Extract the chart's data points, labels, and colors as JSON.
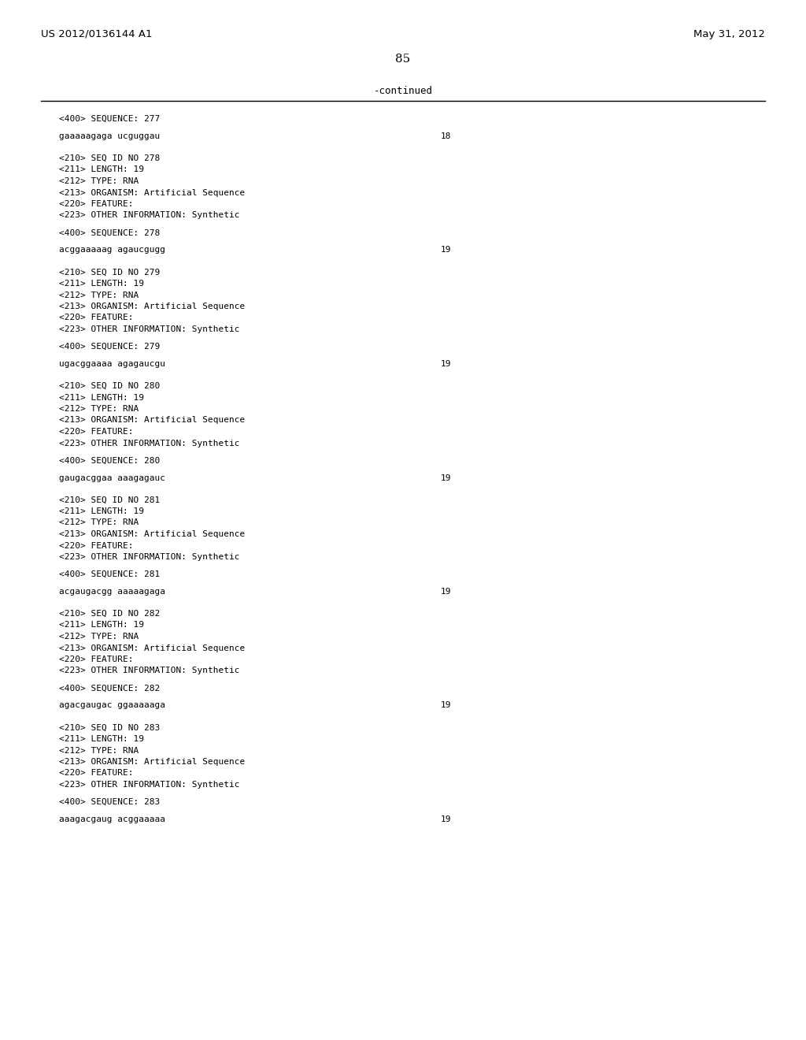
{
  "header_left": "US 2012/0136144 A1",
  "header_right": "May 31, 2012",
  "page_number": "85",
  "continued_label": "-continued",
  "background_color": "#ffffff",
  "text_color": "#000000",
  "sections": [
    {
      "seq400": "<400> SEQUENCE: 277",
      "sequence": "gaaaaagaga ucguggau",
      "seq_number": "18"
    },
    {
      "seq210": "<210> SEQ ID NO 278",
      "seq211": "<211> LENGTH: 19",
      "seq212": "<212> TYPE: RNA",
      "seq213": "<213> ORGANISM: Artificial Sequence",
      "seq220": "<220> FEATURE:",
      "seq223": "<223> OTHER INFORMATION: Synthetic",
      "seq400": "<400> SEQUENCE: 278",
      "sequence": "acggaaaaag agaucgugg",
      "seq_number": "19"
    },
    {
      "seq210": "<210> SEQ ID NO 279",
      "seq211": "<211> LENGTH: 19",
      "seq212": "<212> TYPE: RNA",
      "seq213": "<213> ORGANISM: Artificial Sequence",
      "seq220": "<220> FEATURE:",
      "seq223": "<223> OTHER INFORMATION: Synthetic",
      "seq400": "<400> SEQUENCE: 279",
      "sequence": "ugacggaaaa agagaucgu",
      "seq_number": "19"
    },
    {
      "seq210": "<210> SEQ ID NO 280",
      "seq211": "<211> LENGTH: 19",
      "seq212": "<212> TYPE: RNA",
      "seq213": "<213> ORGANISM: Artificial Sequence",
      "seq220": "<220> FEATURE:",
      "seq223": "<223> OTHER INFORMATION: Synthetic",
      "seq400": "<400> SEQUENCE: 280",
      "sequence": "gaugacggaa aaagagauc",
      "seq_number": "19"
    },
    {
      "seq210": "<210> SEQ ID NO 281",
      "seq211": "<211> LENGTH: 19",
      "seq212": "<212> TYPE: RNA",
      "seq213": "<213> ORGANISM: Artificial Sequence",
      "seq220": "<220> FEATURE:",
      "seq223": "<223> OTHER INFORMATION: Synthetic",
      "seq400": "<400> SEQUENCE: 281",
      "sequence": "acgaugacgg aaaaagaga",
      "seq_number": "19"
    },
    {
      "seq210": "<210> SEQ ID NO 282",
      "seq211": "<211> LENGTH: 19",
      "seq212": "<212> TYPE: RNA",
      "seq213": "<213> ORGANISM: Artificial Sequence",
      "seq220": "<220> FEATURE:",
      "seq223": "<223> OTHER INFORMATION: Synthetic",
      "seq400": "<400> SEQUENCE: 282",
      "sequence": "agacgaugac ggaaaaaga",
      "seq_number": "19"
    },
    {
      "seq210": "<210> SEQ ID NO 283",
      "seq211": "<211> LENGTH: 19",
      "seq212": "<212> TYPE: RNA",
      "seq213": "<213> ORGANISM: Artificial Sequence",
      "seq220": "<220> FEATURE:",
      "seq223": "<223> OTHER INFORMATION: Synthetic",
      "seq400": "<400> SEQUENCE: 283",
      "sequence": "aaagacgaug acggaaaaa",
      "seq_number": "19"
    }
  ]
}
